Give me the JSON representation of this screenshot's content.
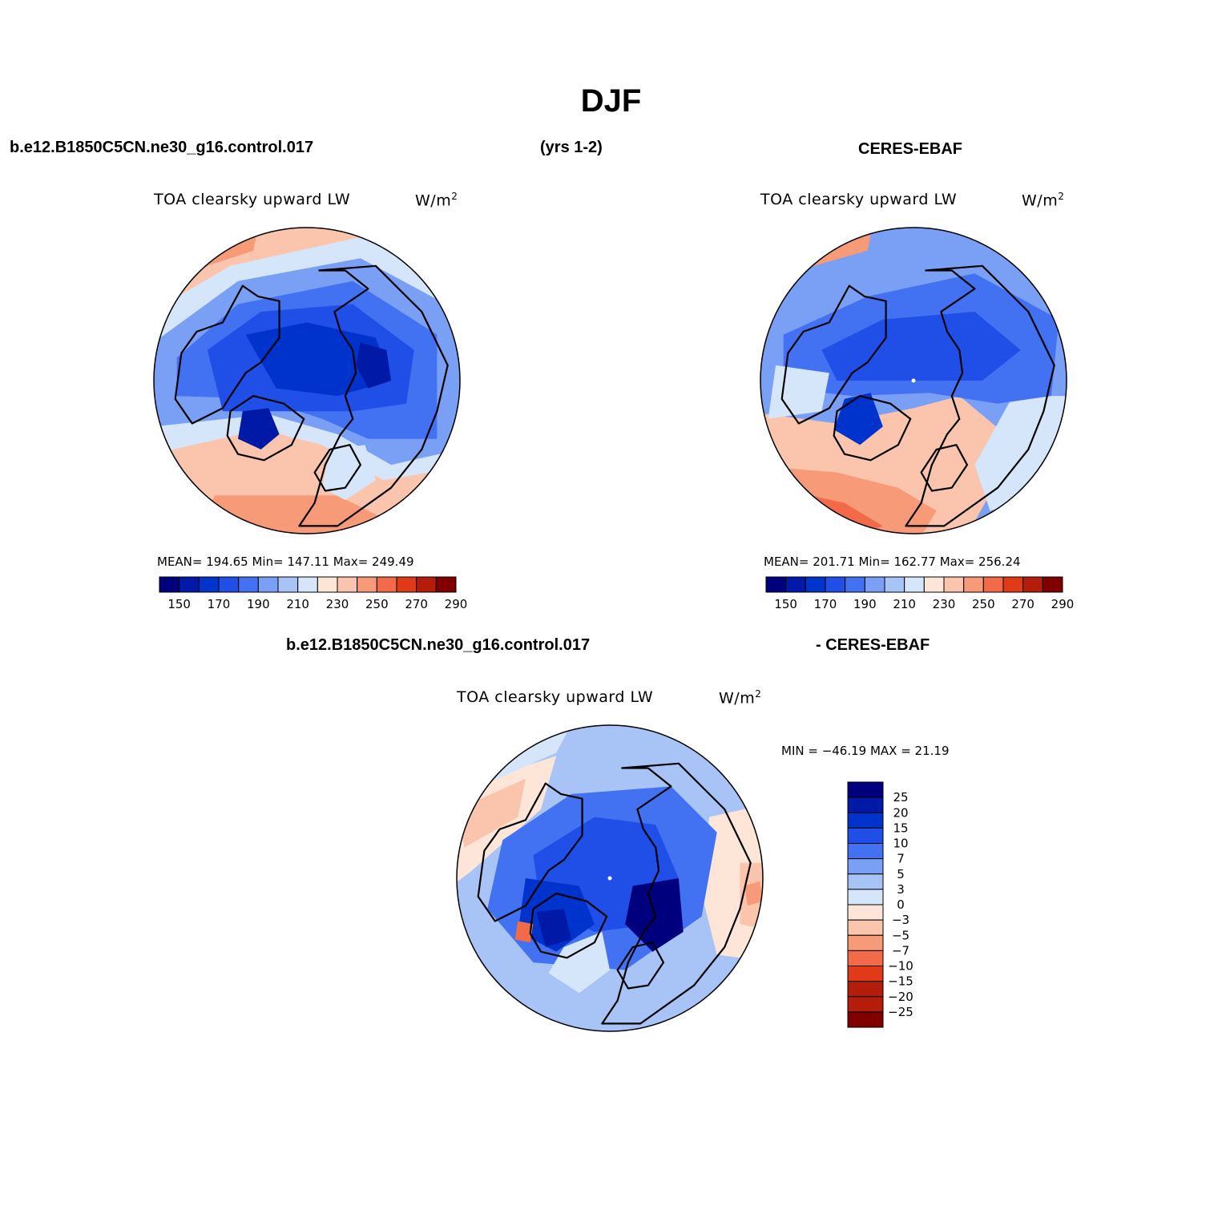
{
  "title": "DJF",
  "headers": {
    "left": "b.e12.B1850C5CN.ne30_g16.control.017",
    "middle": "(yrs 1-2)",
    "right": "CERES-EBAF",
    "bottom_left": "b.e12.B1850C5CN.ne30_g16.control.017",
    "bottom_right": "- CERES-EBAF"
  },
  "panels": [
    {
      "field": "TOA clearsky upward LW",
      "units": "W/m",
      "units_sup": "2",
      "stats": "MEAN= 194.65   Min= 147.11   Max= 249.49",
      "pole_dot": false
    },
    {
      "field": "TOA clearsky upward LW",
      "units": "W/m",
      "units_sup": "2",
      "stats": "MEAN= 201.71   Min= 162.77   Max= 256.24",
      "pole_dot": true
    },
    {
      "field": "TOA clearsky upward LW",
      "units": "W/m",
      "units_sup": "2",
      "stats": "MIN = −46.19 MAX =  21.19",
      "pole_dot": true
    }
  ],
  "colorbar_abs": {
    "colors": [
      "#00007f",
      "#0019a6",
      "#0033cc",
      "#1f4fe6",
      "#4272f2",
      "#7aa0f5",
      "#a8c4f7",
      "#d6e6fa",
      "#fde6d8",
      "#fbc5ad",
      "#f79a78",
      "#f26a47",
      "#e03a18",
      "#b31d0a",
      "#800000"
    ],
    "labels": [
      "150",
      "170",
      "190",
      "210",
      "230",
      "250",
      "270",
      "290"
    ]
  },
  "colorbar_diff": {
    "colors": [
      "#00007f",
      "#0019a6",
      "#0033cc",
      "#1f4fe6",
      "#4272f2",
      "#7aa0f5",
      "#a8c4f7",
      "#d6e6fa",
      "#fde6d8",
      "#fbc5ad",
      "#f79a78",
      "#f26a47",
      "#e03a18",
      "#b31d0a",
      "#b31d0a",
      "#800000"
    ],
    "labels": [
      "25",
      "20",
      "15",
      "10",
      "7",
      "5",
      "3",
      "0",
      "−3",
      "−5",
      "−7",
      "−10",
      "−15",
      "−20",
      "−25"
    ]
  }
}
